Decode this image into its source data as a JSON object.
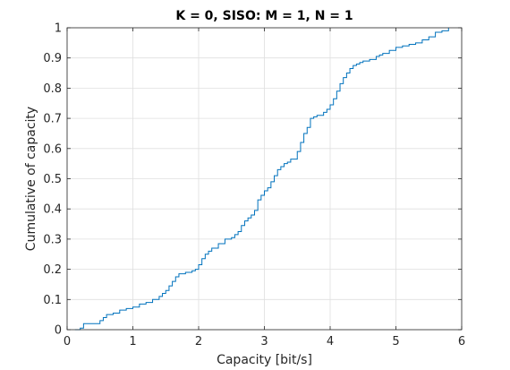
{
  "chart_data": {
    "type": "line",
    "title": "K = 0, SISO: M = 1, N = 1",
    "xlabel": "Capacity [bit/s]",
    "ylabel": "Cumulative of capacity",
    "xlim": [
      0,
      6
    ],
    "ylim": [
      0,
      1
    ],
    "xticks": [
      "0",
      "1",
      "2",
      "3",
      "4",
      "5",
      "6"
    ],
    "yticks": [
      "0",
      "0.1",
      "0.2",
      "0.3",
      "0.4",
      "0.5",
      "0.6",
      "0.7",
      "0.8",
      "0.9",
      "1"
    ],
    "grid": true,
    "line_color": "#0072BD",
    "step": true,
    "series": [
      {
        "x": [
          0.12,
          0.2,
          0.25,
          0.45,
          0.5,
          0.55,
          0.6,
          0.7,
          0.8,
          0.9,
          1.0,
          1.1,
          1.2,
          1.3,
          1.4,
          1.45,
          1.5,
          1.55,
          1.6,
          1.65,
          1.7,
          1.8,
          1.9,
          1.95,
          2.0,
          2.05,
          2.1,
          2.15,
          2.2,
          2.3,
          2.4,
          2.5,
          2.55,
          2.6,
          2.65,
          2.7,
          2.75,
          2.8,
          2.85,
          2.9,
          2.95,
          3.0,
          3.05,
          3.1,
          3.15,
          3.2,
          3.25,
          3.3,
          3.35,
          3.4,
          3.5,
          3.55,
          3.6,
          3.65,
          3.7,
          3.75,
          3.8,
          3.9,
          3.95,
          4.0,
          4.05,
          4.1,
          4.15,
          4.2,
          4.25,
          4.3,
          4.35,
          4.4,
          4.45,
          4.5,
          4.6,
          4.7,
          4.75,
          4.8,
          4.9,
          5.0,
          5.1,
          5.2,
          5.3,
          5.4,
          5.5,
          5.6,
          5.7,
          5.8
        ],
        "y": [
          0.0,
          0.005,
          0.02,
          0.02,
          0.03,
          0.04,
          0.05,
          0.055,
          0.065,
          0.07,
          0.075,
          0.085,
          0.09,
          0.1,
          0.11,
          0.12,
          0.13,
          0.145,
          0.16,
          0.175,
          0.185,
          0.19,
          0.195,
          0.2,
          0.215,
          0.235,
          0.25,
          0.26,
          0.27,
          0.285,
          0.3,
          0.305,
          0.315,
          0.325,
          0.345,
          0.36,
          0.37,
          0.38,
          0.395,
          0.43,
          0.445,
          0.46,
          0.47,
          0.49,
          0.51,
          0.53,
          0.54,
          0.55,
          0.555,
          0.565,
          0.59,
          0.62,
          0.65,
          0.67,
          0.7,
          0.705,
          0.71,
          0.72,
          0.73,
          0.745,
          0.765,
          0.79,
          0.815,
          0.835,
          0.85,
          0.865,
          0.875,
          0.88,
          0.885,
          0.89,
          0.895,
          0.905,
          0.91,
          0.915,
          0.925,
          0.935,
          0.94,
          0.945,
          0.95,
          0.96,
          0.97,
          0.985,
          0.99,
          1.0
        ]
      }
    ]
  }
}
